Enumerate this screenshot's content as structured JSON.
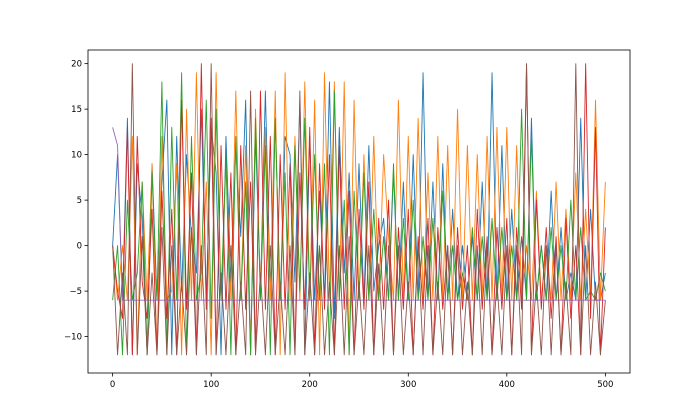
{
  "chart_data": {
    "type": "line",
    "title": "",
    "xlabel": "",
    "ylabel": "",
    "xlim": [
      -25,
      525
    ],
    "ylim": [
      -14,
      21.5
    ],
    "x_ticks": [
      0,
      100,
      200,
      300,
      400,
      500
    ],
    "y_ticks": [
      -10,
      -5,
      0,
      5,
      10,
      15,
      20
    ],
    "x_tick_labels": [
      "0",
      "100",
      "200",
      "300",
      "400",
      "500"
    ],
    "y_tick_labels": [
      "−10",
      "−5",
      "0",
      "5",
      "10",
      "15",
      "20"
    ],
    "grid": false,
    "legend": "none",
    "x_start": 0,
    "x_step": 5,
    "series": [
      {
        "color": "#1f77b4",
        "values": [
          0,
          10,
          -6,
          14,
          -12,
          9,
          3,
          -12,
          9,
          -6,
          7,
          16,
          -12,
          12,
          -5,
          10,
          1,
          -3,
          15,
          -6,
          13,
          8,
          -12,
          12,
          -4,
          11,
          1,
          16,
          -12,
          12,
          -5,
          17,
          -5,
          14,
          -6,
          12,
          10,
          -4,
          16,
          -12,
          12,
          -6,
          6,
          -6,
          18,
          -8,
          13,
          -3,
          8,
          -6,
          9,
          -6,
          11,
          -5,
          0,
          3,
          -6,
          8,
          -6,
          7,
          -6,
          10,
          -6,
          19,
          -6,
          7,
          -6,
          9,
          -6,
          4,
          -6,
          0,
          -6,
          1,
          -6,
          7,
          -6,
          19,
          -6,
          11,
          -6,
          4,
          -6,
          1,
          -6,
          14,
          -6,
          0,
          -6,
          6,
          -6,
          2,
          -6,
          -3,
          -6,
          14,
          -6,
          4,
          -6,
          -6,
          -3
        ]
      },
      {
        "color": "#ff7f0e",
        "values": [
          0,
          -6,
          0,
          -6,
          12,
          -12,
          7,
          -6,
          9,
          -12,
          12,
          -6,
          -5,
          9,
          -12,
          15,
          -6,
          19,
          -6,
          7,
          -12,
          19,
          -6,
          9,
          -6,
          17,
          -6,
          11,
          -12,
          15,
          -5,
          13,
          -6,
          17,
          -12,
          19,
          -6,
          12,
          -6,
          18,
          -6,
          16,
          -12,
          19,
          -6,
          18,
          -6,
          18,
          -12,
          16,
          -6,
          10,
          -6,
          12,
          -6,
          10,
          1,
          -6,
          16,
          -6,
          12,
          -6,
          14,
          -6,
          8,
          -6,
          12,
          -6,
          11,
          -6,
          15,
          -6,
          11,
          -6,
          10,
          -6,
          12,
          -6,
          13,
          -6,
          13,
          -6,
          11,
          -6,
          0,
          -6,
          6,
          -6,
          0,
          -6,
          7,
          -6,
          4,
          -6,
          8,
          -6,
          4,
          -6,
          16,
          -6,
          7
        ]
      },
      {
        "color": "#2ca02c",
        "values": [
          -6,
          0,
          -12,
          5,
          -6,
          -3,
          7,
          -12,
          8,
          -6,
          18,
          -12,
          13,
          -6,
          19,
          -12,
          12,
          -6,
          -3,
          16,
          -8,
          15,
          -6,
          10,
          -12,
          12,
          -6,
          7,
          -12,
          14,
          -6,
          11,
          -12,
          14,
          -6,
          8,
          -12,
          11,
          -5,
          14,
          -6,
          10,
          -6,
          9,
          -12,
          17,
          -6,
          5,
          -12,
          6,
          -6,
          8,
          -6,
          4,
          -6,
          1,
          -6,
          9,
          -6,
          3,
          -6,
          5,
          -6,
          1,
          -6,
          3,
          -6,
          6,
          -6,
          0,
          -6,
          -3,
          -6,
          2,
          -6,
          1,
          -6,
          3,
          -6,
          2,
          -6,
          0,
          -6,
          15,
          -6,
          12,
          -6,
          0,
          -6,
          2,
          -6,
          0,
          -6,
          5,
          -6,
          2,
          -6,
          -5,
          -6,
          -3,
          -5
        ]
      },
      {
        "color": "#d62728",
        "values": [
          0,
          -5,
          -8,
          13,
          -12,
          12,
          -4,
          -8,
          4,
          -12,
          6,
          -8,
          4,
          -12,
          16,
          -7,
          8,
          -12,
          20,
          -7,
          14,
          -12,
          11,
          -7,
          8,
          -12,
          11,
          -7,
          7,
          -12,
          17,
          -7,
          12,
          -12,
          10,
          -7,
          9,
          -12,
          8,
          -7,
          13,
          -12,
          9,
          -7,
          10,
          -12,
          11,
          -7,
          6,
          -12,
          4,
          -7,
          7,
          -12,
          3,
          -7,
          5,
          -12,
          2,
          -7,
          4,
          -12,
          1,
          -7,
          3,
          -12,
          2,
          -7,
          0,
          -12,
          2,
          -7,
          0,
          -12,
          4,
          -7,
          1,
          -12,
          2,
          -7,
          3,
          -12,
          2,
          -7,
          20,
          -12,
          5,
          -7,
          2,
          -8,
          1,
          -12,
          3,
          -8,
          0,
          -12,
          20,
          -8,
          13,
          -12,
          2
        ]
      },
      {
        "color": "#9467bd",
        "values": [
          13,
          11,
          -6,
          -6,
          -6,
          -6,
          -6,
          -6,
          -6,
          -6,
          -6,
          -6,
          -6,
          -6,
          -6,
          -6,
          -6,
          -6,
          -6,
          -6,
          -6,
          -6,
          -6,
          -6,
          -6,
          -6,
          -6,
          -6,
          -6,
          -6,
          -6,
          -6,
          -6,
          -6,
          -6,
          -6,
          -6,
          -6,
          -6,
          -6,
          -6,
          -6,
          -6,
          -6,
          -6,
          -6,
          -6,
          -6,
          -6,
          -6,
          -6,
          -6,
          -6,
          -6,
          -6,
          -6,
          -6,
          -6,
          -6,
          -6,
          -6,
          -6,
          -6,
          -6,
          -6,
          -6,
          -6,
          -6,
          -6,
          -6,
          -6,
          -6,
          -6,
          -6,
          -6,
          -6,
          -6,
          -6,
          -6,
          -6,
          -6,
          -6,
          -6,
          -6,
          -6,
          -6,
          -6,
          -6,
          -6,
          -6,
          -6,
          -6,
          -6,
          -6,
          -6,
          -6,
          -6,
          -6,
          -6,
          -6,
          -6
        ]
      },
      {
        "color": "#8c564b",
        "values": [
          0,
          -12,
          -3,
          -12,
          20,
          -12,
          1,
          -12,
          -3,
          -12,
          2,
          -12,
          0,
          -12,
          -4,
          -12,
          2,
          -12,
          0,
          -12,
          20,
          -12,
          -3,
          -12,
          0,
          -12,
          -4,
          -12,
          17,
          -12,
          -3,
          -12,
          0,
          -12,
          -4,
          -12,
          0,
          -12,
          17,
          -12,
          -3,
          -12,
          0,
          -12,
          -4,
          -12,
          0,
          -12,
          1,
          -12,
          -4,
          -12,
          0,
          -12,
          -2,
          -12,
          0,
          -12,
          0,
          -12,
          -4,
          -12,
          0,
          -12,
          0,
          -12,
          -4,
          -12,
          0,
          -12,
          0,
          -12,
          -4,
          -12,
          0,
          -12,
          0,
          -12,
          -4,
          -12,
          0,
          -12,
          0,
          -12,
          20,
          -12,
          -4,
          -12,
          0,
          -12,
          0,
          -12,
          -4,
          -12,
          20,
          -12,
          0,
          -12,
          -4,
          -12,
          -6
        ]
      }
    ]
  }
}
